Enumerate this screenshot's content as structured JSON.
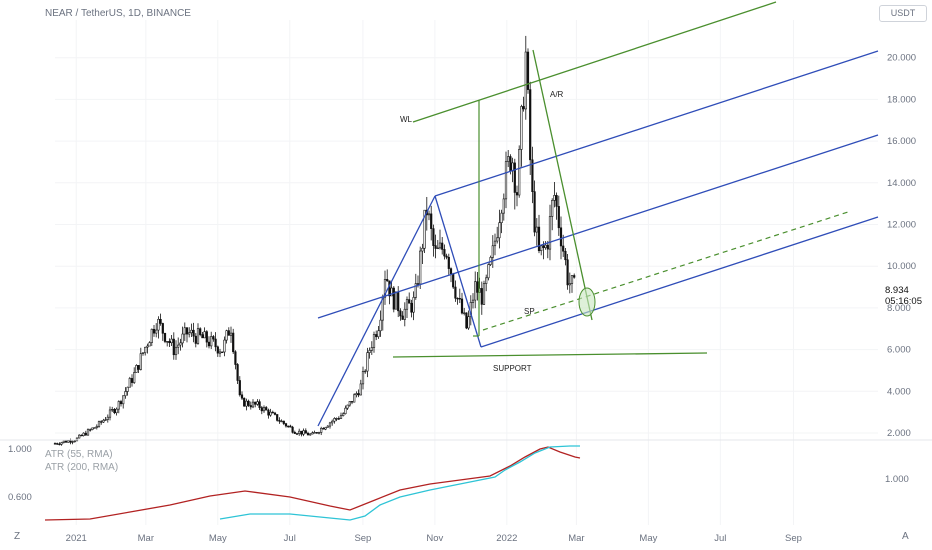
{
  "header": {
    "symbol_line": "NEAR / TetherUS, 1D, BINANCE",
    "currency_button": "USDT"
  },
  "price_tag": {
    "price": "8.934",
    "countdown": "05:16:05"
  },
  "corners": {
    "left": "Z",
    "right": "A"
  },
  "indicator": {
    "labels": [
      "ATR (55, RMA)",
      "ATR (200, RMA)"
    ],
    "axis_labels": [
      "1.000",
      "0.600"
    ],
    "right_axis_labels": [
      "1.000"
    ],
    "colors": {
      "atr55": "#b22222",
      "atr200": "#2ec4d6"
    }
  },
  "chart_data": {
    "type": "candlestick",
    "title": "NEAR / TetherUS, 1D, BINANCE",
    "x_ticks": [
      "2021",
      "Mar",
      "May",
      "Jul",
      "Sep",
      "Nov",
      "2022",
      "Mar",
      "May",
      "Jul",
      "Sep"
    ],
    "y_ticks": [
      "2.000",
      "4.000",
      "6.000",
      "8.000",
      "10.000",
      "12.000",
      "14.000",
      "16.000",
      "18.000",
      "20.000"
    ],
    "ylim": [
      1.2,
      21.0
    ],
    "date_range": [
      "2020-12-14",
      "2022-02-28"
    ],
    "close_path": [
      [
        "2020-12-14",
        1.5
      ],
      [
        "2021-01-01",
        1.7
      ],
      [
        "2021-01-20",
        2.4
      ],
      [
        "2021-02-05",
        3.3
      ],
      [
        "2021-02-20",
        4.9
      ],
      [
        "2021-03-01",
        6.2
      ],
      [
        "2021-03-10",
        7.4
      ],
      [
        "2021-03-25",
        6.0
      ],
      [
        "2021-04-05",
        6.8
      ],
      [
        "2021-04-20",
        6.5
      ],
      [
        "2021-05-05",
        6.0
      ],
      [
        "2021-05-12",
        7.2
      ],
      [
        "2021-05-20",
        3.5
      ],
      [
        "2021-06-05",
        3.3
      ],
      [
        "2021-06-20",
        2.7
      ],
      [
        "2021-07-05",
        2.1
      ],
      [
        "2021-07-20",
        1.9
      ],
      [
        "2021-08-01",
        2.4
      ],
      [
        "2021-08-15",
        2.9
      ],
      [
        "2021-08-30",
        4.2
      ],
      [
        "2021-09-07",
        6.1
      ],
      [
        "2021-09-15",
        7.4
      ],
      [
        "2021-09-20",
        9.8
      ],
      [
        "2021-09-25",
        8.6
      ],
      [
        "2021-10-05",
        7.8
      ],
      [
        "2021-10-15",
        8.3
      ],
      [
        "2021-10-25",
        12.8
      ],
      [
        "2021-11-01",
        10.5
      ],
      [
        "2021-11-10",
        11.0
      ],
      [
        "2021-11-20",
        8.5
      ],
      [
        "2021-11-28",
        7.0
      ],
      [
        "2021-12-05",
        9.0
      ],
      [
        "2021-12-12",
        8.5
      ],
      [
        "2021-12-20",
        10.5
      ],
      [
        "2021-12-28",
        13.5
      ],
      [
        "2022-01-05",
        15.5
      ],
      [
        "2022-01-10",
        13.5
      ],
      [
        "2022-01-17",
        20.2
      ],
      [
        "2022-01-22",
        13.5
      ],
      [
        "2022-01-28",
        10.5
      ],
      [
        "2022-02-04",
        11.0
      ],
      [
        "2022-02-10",
        13.5
      ],
      [
        "2022-02-16",
        11.5
      ],
      [
        "2022-02-22",
        9.3
      ],
      [
        "2022-02-28",
        8.9
      ]
    ],
    "last_price": 8.934,
    "annotations": {
      "labels": [
        "WL",
        "A/R",
        "SP",
        "SUPPORT"
      ],
      "support_level": 5.75,
      "colors": {
        "channel": "#2f4db8",
        "trend": "#4a8f2e",
        "sp_dashed": "#4a8f2e"
      }
    },
    "legend": {
      "atr55": "ATR (55, RMA)",
      "atr200": "ATR (200, RMA)"
    }
  }
}
